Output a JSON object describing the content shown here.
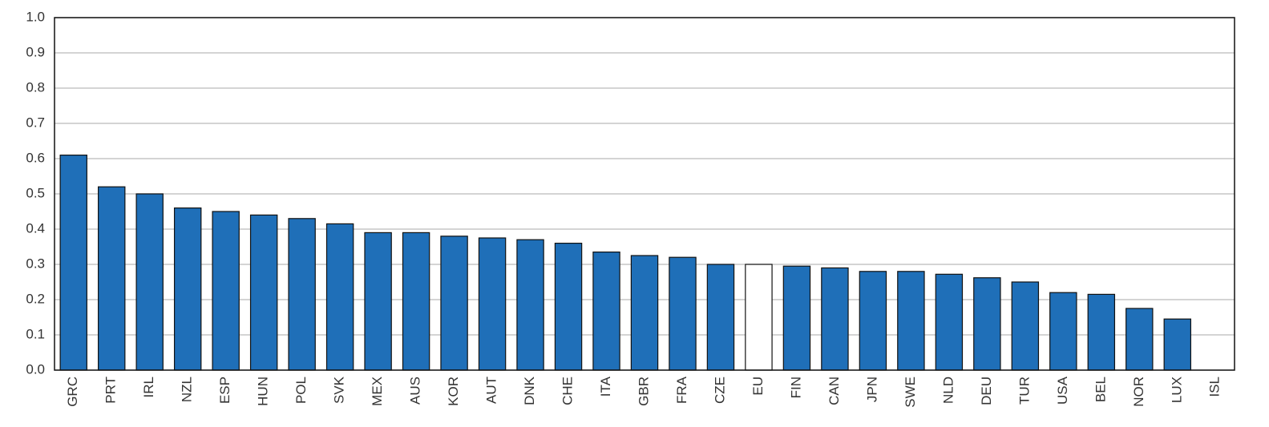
{
  "chart_data": {
    "type": "bar",
    "categories": [
      "GRC",
      "PRT",
      "IRL",
      "NZL",
      "ESP",
      "HUN",
      "POL",
      "SVK",
      "MEX",
      "AUS",
      "KOR",
      "AUT",
      "DNK",
      "CHE",
      "ITA",
      "GBR",
      "FRA",
      "CZE",
      "EU",
      "FIN",
      "CAN",
      "JPN",
      "SWE",
      "NLD",
      "DEU",
      "TUR",
      "USA",
      "BEL",
      "NOR",
      "LUX",
      "ISL"
    ],
    "values": [
      0.61,
      0.52,
      0.5,
      0.46,
      0.45,
      0.44,
      0.43,
      0.415,
      0.39,
      0.39,
      0.38,
      0.375,
      0.37,
      0.36,
      0.335,
      0.325,
      0.32,
      0.3,
      0.3,
      0.295,
      0.29,
      0.28,
      0.28,
      0.272,
      0.262,
      0.25,
      0.22,
      0.215,
      0.175,
      0.145,
      0
    ],
    "colors": [
      "#1f6fb8",
      "#1f6fb8",
      "#1f6fb8",
      "#1f6fb8",
      "#1f6fb8",
      "#1f6fb8",
      "#1f6fb8",
      "#1f6fb8",
      "#1f6fb8",
      "#1f6fb8",
      "#1f6fb8",
      "#1f6fb8",
      "#1f6fb8",
      "#1f6fb8",
      "#1f6fb8",
      "#1f6fb8",
      "#1f6fb8",
      "#1f6fb8",
      "#ffffff",
      "#1f6fb8",
      "#1f6fb8",
      "#1f6fb8",
      "#1f6fb8",
      "#1f6fb8",
      "#1f6fb8",
      "#1f6fb8",
      "#1f6fb8",
      "#1f6fb8",
      "#1f6fb8",
      "#1f6fb8",
      "#1f6fb8"
    ],
    "ylim": [
      0,
      1
    ],
    "yticks": [
      {
        "value": 0,
        "label": "0.0"
      },
      0.1,
      0.2,
      0.3,
      0.4,
      0.5,
      0.6,
      0.7,
      0.8,
      0.9,
      {
        "value": 1,
        "label": "1.0"
      }
    ],
    "grid": true
  }
}
